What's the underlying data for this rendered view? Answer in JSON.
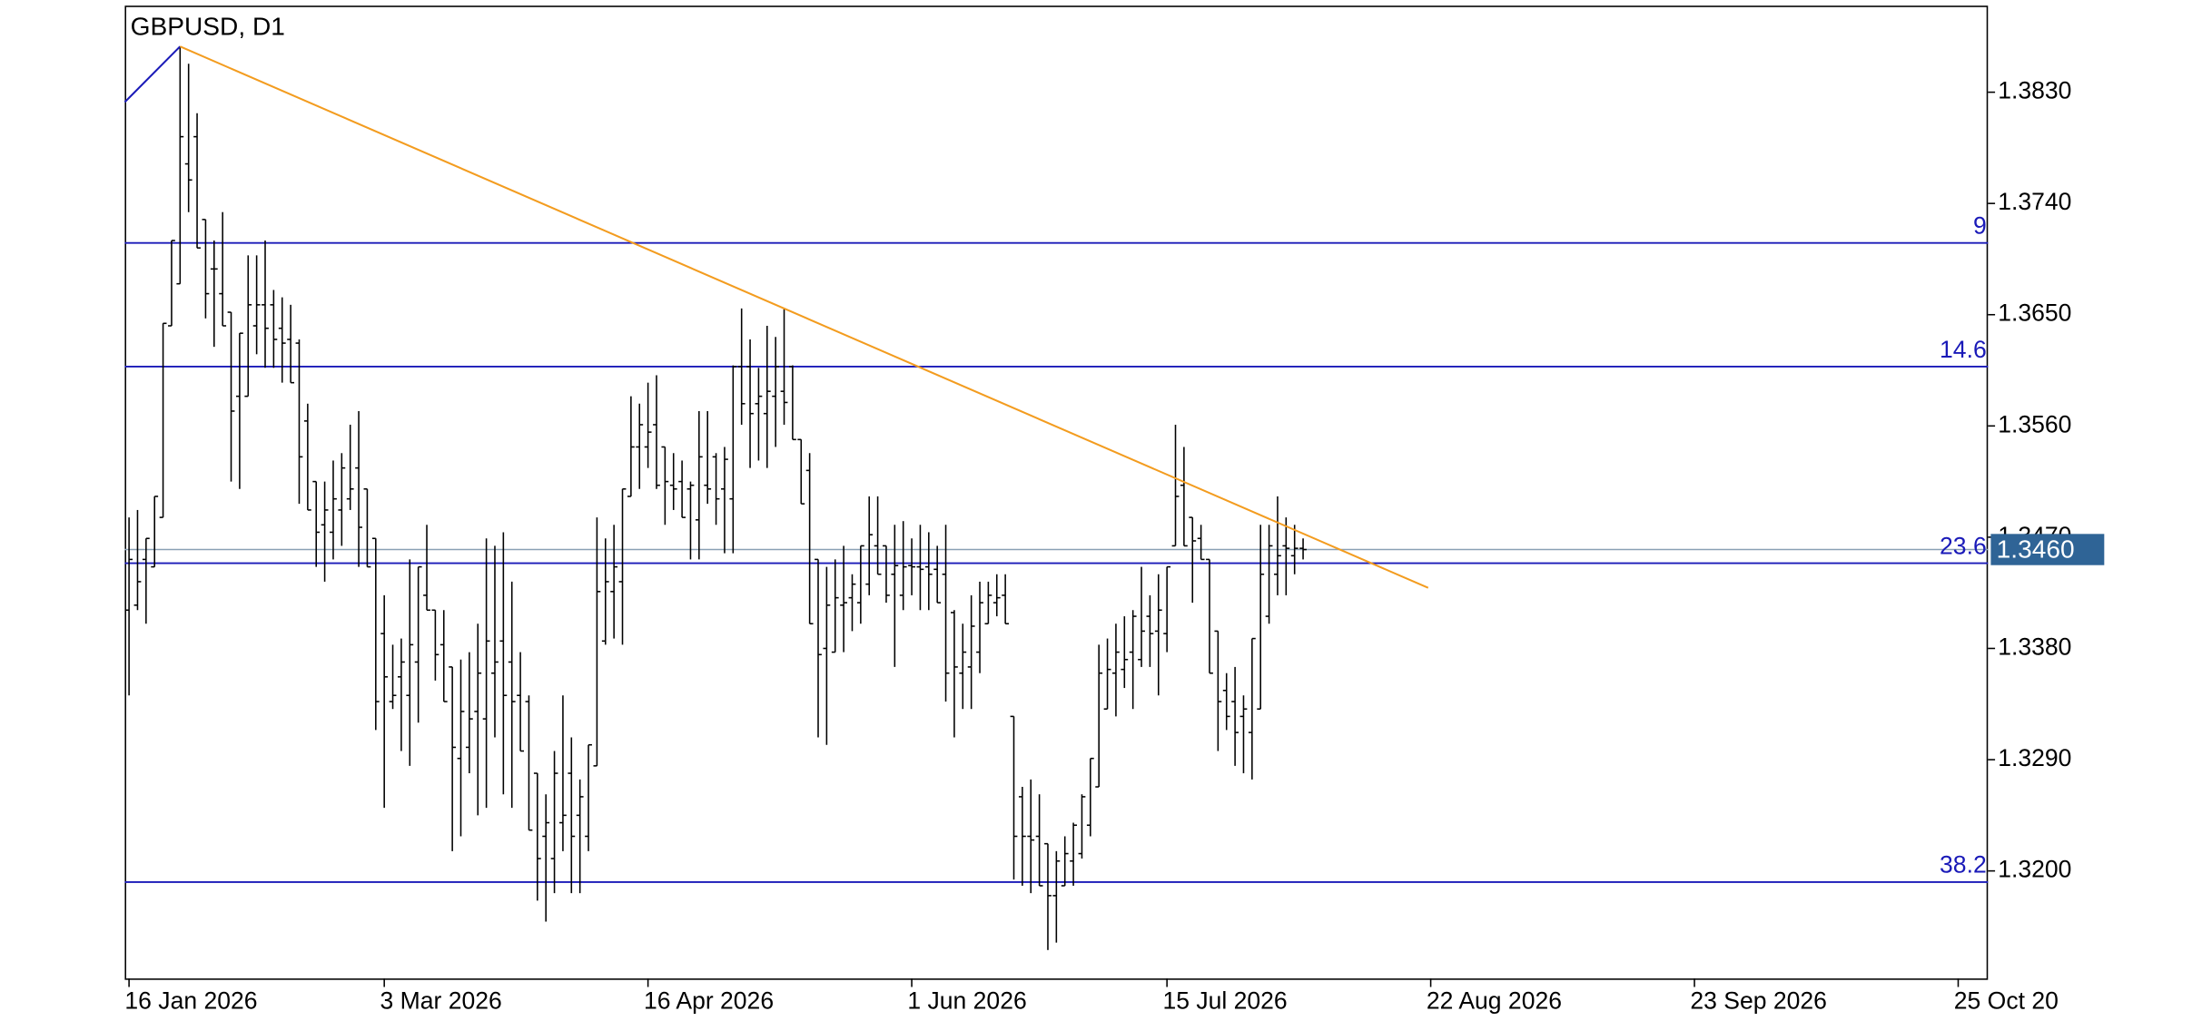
{
  "chart_data": {
    "type": "ohlc",
    "title": "GBPUSD, D1",
    "series": [
      {
        "color": "#000000",
        "open": [
          1.3411,
          1.3415,
          1.3452,
          1.3446,
          1.3486,
          1.3641,
          1.3675,
          1.3772,
          1.3794,
          1.3727,
          1.3687,
          1.3667,
          1.3652,
          1.3584,
          1.3584,
          1.3641,
          1.3658,
          1.3658,
          1.3639,
          1.363,
          1.3627,
          1.3564,
          1.3515,
          1.348,
          1.3474,
          1.3492,
          1.3501,
          1.3526,
          1.3509,
          1.3469,
          1.3392,
          1.3337,
          1.3357,
          1.3342,
          1.3369,
          1.3423,
          1.3411,
          1.3383,
          1.3365,
          1.3291,
          1.33,
          1.3329,
          1.3323,
          1.336,
          1.3386,
          1.3369,
          1.3342,
          1.3337,
          1.3279,
          1.3228,
          1.321,
          1.3239,
          1.3279,
          1.3245,
          1.3228,
          1.3285,
          1.3386,
          1.3426,
          1.3434,
          1.3503,
          1.3543,
          1.3543,
          1.3561,
          1.3543,
          1.3512,
          1.3515,
          1.3509,
          1.3484,
          1.3512,
          1.3535,
          1.3509,
          1.3501,
          1.3608,
          1.3608,
          1.3578,
          1.357,
          1.3584,
          1.3588,
          1.3608,
          1.3549,
          1.3524,
          1.3452,
          1.338,
          1.3377,
          1.3415,
          1.3421,
          1.3417,
          1.3432,
          1.3463,
          1.3463,
          1.344,
          1.3423,
          1.3447,
          1.3446,
          1.3446,
          1.3444,
          1.344,
          1.3409,
          1.336,
          1.3365,
          1.3377,
          1.34,
          1.3417,
          1.3423,
          1.3325,
          1.326,
          1.3228,
          1.3228,
          1.3222,
          1.318,
          1.3188,
          1.3208,
          1.3214,
          1.3237,
          1.3268,
          1.3331,
          1.336,
          1.3363,
          1.3377,
          1.3371,
          1.3406,
          1.3394,
          1.3392,
          1.3463,
          1.3512,
          1.3486,
          1.3469,
          1.3452,
          1.3394,
          1.3346,
          1.3337,
          1.3325,
          1.3312,
          1.3331,
          1.3406,
          1.344,
          1.3463,
          1.3455,
          1.3461
        ],
        "high": [
          1.3486,
          1.3492,
          1.3469,
          1.3503,
          1.3643,
          1.371,
          1.3867,
          1.3853,
          1.3813,
          1.3727,
          1.371,
          1.3733,
          1.3652,
          1.3635,
          1.3698,
          1.3698,
          1.371,
          1.367,
          1.3664,
          1.3658,
          1.363,
          1.3578,
          1.3515,
          1.3515,
          1.3532,
          1.3538,
          1.3561,
          1.3572,
          1.3509,
          1.3469,
          1.3423,
          1.3383,
          1.3388,
          1.3452,
          1.3446,
          1.348,
          1.3411,
          1.3411,
          1.3365,
          1.3371,
          1.3377,
          1.34,
          1.3469,
          1.3463,
          1.3474,
          1.3434,
          1.3377,
          1.3342,
          1.3279,
          1.3262,
          1.3297,
          1.3342,
          1.3308,
          1.3274,
          1.3302,
          1.3486,
          1.3469,
          1.348,
          1.3509,
          1.3584,
          1.3578,
          1.3595,
          1.3601,
          1.3543,
          1.3538,
          1.3532,
          1.3515,
          1.3572,
          1.3572,
          1.3538,
          1.3543,
          1.3609,
          1.3655,
          1.363,
          1.3607,
          1.3641,
          1.3632,
          1.3655,
          1.3609,
          1.3549,
          1.3538,
          1.3452,
          1.3446,
          1.3452,
          1.3463,
          1.344,
          1.3463,
          1.3503,
          1.3503,
          1.3463,
          1.348,
          1.3483,
          1.3469,
          1.348,
          1.3474,
          1.3463,
          1.348,
          1.3411,
          1.34,
          1.3423,
          1.3434,
          1.3434,
          1.344,
          1.344,
          1.3325,
          1.3268,
          1.3274,
          1.3262,
          1.3222,
          1.3216,
          1.3228,
          1.3239,
          1.3262,
          1.3291,
          1.3383,
          1.3388,
          1.34,
          1.3406,
          1.3411,
          1.3446,
          1.3423,
          1.344,
          1.3446,
          1.3561,
          1.3543,
          1.3486,
          1.348,
          1.3452,
          1.3394,
          1.336,
          1.3365,
          1.3342,
          1.3388,
          1.348,
          1.348,
          1.3503,
          1.3486,
          1.348,
          1.3469
        ],
        "low": [
          1.3342,
          1.3411,
          1.34,
          1.3446,
          1.3486,
          1.3641,
          1.3675,
          1.3733,
          1.3704,
          1.3647,
          1.3624,
          1.3641,
          1.3515,
          1.3509,
          1.3584,
          1.3618,
          1.3607,
          1.3607,
          1.3595,
          1.3595,
          1.3497,
          1.3492,
          1.3446,
          1.3434,
          1.3452,
          1.3463,
          1.3492,
          1.3446,
          1.3446,
          1.3314,
          1.3251,
          1.3331,
          1.3297,
          1.3285,
          1.332,
          1.3411,
          1.3354,
          1.3337,
          1.3216,
          1.3228,
          1.3279,
          1.3245,
          1.3251,
          1.3308,
          1.3262,
          1.3251,
          1.3297,
          1.3233,
          1.3176,
          1.3159,
          1.3182,
          1.3216,
          1.3182,
          1.3182,
          1.3216,
          1.3285,
          1.3383,
          1.3388,
          1.3383,
          1.3503,
          1.3509,
          1.3526,
          1.3509,
          1.348,
          1.3492,
          1.3486,
          1.3452,
          1.3452,
          1.3497,
          1.348,
          1.3457,
          1.3457,
          1.3561,
          1.3526,
          1.3532,
          1.3526,
          1.3543,
          1.3561,
          1.3549,
          1.3497,
          1.34,
          1.3308,
          1.3302,
          1.3377,
          1.3377,
          1.3394,
          1.34,
          1.3423,
          1.344,
          1.3417,
          1.3365,
          1.3411,
          1.3423,
          1.3411,
          1.3411,
          1.3417,
          1.3337,
          1.3308,
          1.3331,
          1.3331,
          1.336,
          1.34,
          1.3406,
          1.34,
          1.3193,
          1.3188,
          1.3182,
          1.3188,
          1.3136,
          1.3142,
          1.3188,
          1.3188,
          1.321,
          1.3228,
          1.3268,
          1.3331,
          1.3325,
          1.3348,
          1.3331,
          1.3365,
          1.3365,
          1.3342,
          1.3377,
          1.3463,
          1.3463,
          1.3417,
          1.3452,
          1.336,
          1.3297,
          1.3314,
          1.3285,
          1.3279,
          1.3274,
          1.3331,
          1.34,
          1.3423,
          1.3423,
          1.344,
          1.3452
        ],
        "close": [
          1.3452,
          1.3434,
          1.3469,
          1.3503,
          1.3643,
          1.371,
          1.3794,
          1.3759,
          1.3704,
          1.3667,
          1.3687,
          1.3641,
          1.3572,
          1.3635,
          1.3658,
          1.3658,
          1.3639,
          1.363,
          1.3627,
          1.3595,
          1.3535,
          1.3492,
          1.3474,
          1.3492,
          1.3501,
          1.3526,
          1.3509,
          1.3478,
          1.3446,
          1.3337,
          1.3357,
          1.3342,
          1.3369,
          1.3383,
          1.3446,
          1.3411,
          1.3375,
          1.3337,
          1.33,
          1.3329,
          1.3323,
          1.336,
          1.3386,
          1.3369,
          1.3342,
          1.3337,
          1.3297,
          1.3233,
          1.321,
          1.3239,
          1.3279,
          1.3245,
          1.3228,
          1.326,
          1.3302,
          1.3426,
          1.3434,
          1.3446,
          1.3509,
          1.3543,
          1.3561,
          1.3555,
          1.3512,
          1.3515,
          1.3509,
          1.3486,
          1.3512,
          1.3535,
          1.3509,
          1.3501,
          1.3533,
          1.3608,
          1.3578,
          1.357,
          1.3584,
          1.3588,
          1.3608,
          1.3579,
          1.3549,
          1.3497,
          1.34,
          1.3375,
          1.3415,
          1.3421,
          1.3417,
          1.3432,
          1.3463,
          1.3472,
          1.344,
          1.3423,
          1.3447,
          1.3446,
          1.3446,
          1.3444,
          1.344,
          1.3417,
          1.336,
          1.3365,
          1.3377,
          1.3398,
          1.3417,
          1.3423,
          1.3421,
          1.34,
          1.3228,
          1.3228,
          1.3225,
          1.3188,
          1.318,
          1.3208,
          1.3214,
          1.3237,
          1.326,
          1.3291,
          1.336,
          1.3363,
          1.3377,
          1.3371,
          1.3406,
          1.3394,
          1.3392,
          1.3411,
          1.3446,
          1.3503,
          1.3463,
          1.3467,
          1.3452,
          1.336,
          1.3337,
          1.3325,
          1.3312,
          1.3331,
          1.3388,
          1.344,
          1.3463,
          1.3455,
          1.3461,
          1.3461,
          1.346
        ]
      }
    ],
    "xlim": [
      -0.5,
      218.5
    ],
    "xticks": [
      {
        "value": 0,
        "label": "16 Jan 2026"
      },
      {
        "value": 30,
        "label": "3 Mar 2026"
      },
      {
        "value": 61,
        "label": "16 Apr 2026"
      },
      {
        "value": 92,
        "label": "1 Jun 2026"
      },
      {
        "value": 122,
        "label": "15 Jul 2026"
      },
      {
        "value": 153,
        "label": "22 Aug 2026"
      },
      {
        "value": 184,
        "label": "23 Sep 2026"
      },
      {
        "value": 215,
        "label": "25 Oct 20"
      }
    ],
    "ylim": [
      1.3113,
      1.39
    ],
    "yticks": [
      {
        "value": 1.383,
        "label": "1.3830"
      },
      {
        "value": 1.374,
        "label": "1.3740"
      },
      {
        "value": 1.365,
        "label": "1.3650"
      },
      {
        "value": 1.356,
        "label": "1.3560"
      },
      {
        "value": 1.347,
        "label": "1.3470"
      },
      {
        "value": 1.338,
        "label": "1.3380"
      },
      {
        "value": 1.329,
        "label": "1.3290"
      },
      {
        "value": 1.32,
        "label": "1.3200"
      }
    ],
    "levels": [
      {
        "label": "9",
        "value": 1.3708
      },
      {
        "label": "14.6",
        "value": 1.3608
      },
      {
        "label": "23.6",
        "value": 1.3449
      },
      {
        "label": "38.2",
        "value": 1.3191
      }
    ],
    "level_color": "#1a1ab8",
    "trendlines": [
      {
        "color": "#1a1ab8",
        "start": [
          -0.5,
          1.3822
        ],
        "end": [
          6,
          1.3867
        ]
      },
      {
        "color": "#f39c1f",
        "start": [
          6,
          1.3867
        ],
        "end": [
          152.7,
          1.3429
        ]
      }
    ],
    "last_price": {
      "value": 1.346,
      "label": "1.3460"
    },
    "last_price_color": "#2f6496"
  }
}
